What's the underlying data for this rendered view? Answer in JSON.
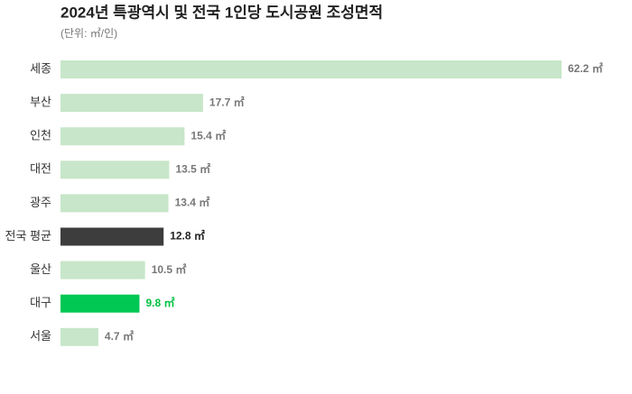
{
  "chart_data": {
    "type": "bar",
    "orientation": "horizontal",
    "title": "2024년 특광역시 및 전국 1인당 도시공원 조성면적",
    "subtitle": "(단위: ㎡/인)",
    "categories": [
      "세종",
      "부산",
      "인천",
      "대전",
      "광주",
      "전국 평균",
      "울산",
      "대구",
      "서울"
    ],
    "values": [
      62.2,
      17.7,
      15.4,
      13.5,
      13.4,
      12.8,
      10.5,
      9.8,
      4.7
    ],
    "value_labels": [
      "62.2 ㎡",
      "17.7 ㎡",
      "15.4 ㎡",
      "13.5 ㎡",
      "13.4 ㎡",
      "12.8 ㎡",
      "10.5 ㎡",
      "9.8 ㎡",
      "4.7 ㎡"
    ],
    "colors": [
      "#c8e6c9",
      "#c8e6c9",
      "#c8e6c9",
      "#c8e6c9",
      "#c8e6c9",
      "#3d3d3d",
      "#c8e6c9",
      "#00c853",
      "#c8e6c9"
    ],
    "label_colors": [
      "#777777",
      "#777777",
      "#777777",
      "#777777",
      "#777777",
      "#222222",
      "#777777",
      "#00c040",
      "#777777"
    ]
  }
}
